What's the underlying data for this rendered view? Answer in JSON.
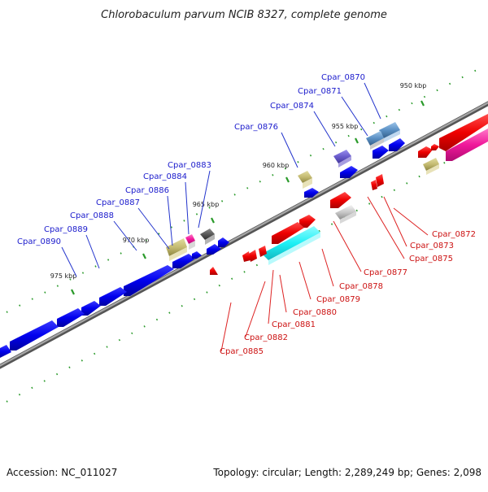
{
  "title": "Chlorobaculum parvum NCIB 8327, complete genome",
  "accession": "Accession: NC_011027",
  "summary": "Topology: circular; Length: 2,289,249 bp; Genes: 2,098",
  "colors": {
    "backbone": "#8a8a8a",
    "tick": "#2a9a2a",
    "label_top": "#1a1acc",
    "label_bottom": "#cc1111",
    "leader_top": "#2233cc",
    "leader_bottom": "#dd2222"
  },
  "position_ticks": [
    "950 kbp",
    "955 kbp",
    "960 kbp",
    "965 kbp",
    "970 kbp",
    "975 kbp"
  ],
  "genes_top": [
    "Cpar_0870",
    "Cpar_0871",
    "Cpar_0874",
    "Cpar_0876",
    "Cpar_0883",
    "Cpar_0884",
    "Cpar_0886",
    "Cpar_0887",
    "Cpar_0888",
    "Cpar_0889",
    "Cpar_0890"
  ],
  "genes_bottom": [
    "Cpar_0872",
    "Cpar_0873",
    "Cpar_0875",
    "Cpar_0877",
    "Cpar_0878",
    "Cpar_0879",
    "Cpar_0880",
    "Cpar_0881",
    "Cpar_0882",
    "Cpar_0885"
  ]
}
